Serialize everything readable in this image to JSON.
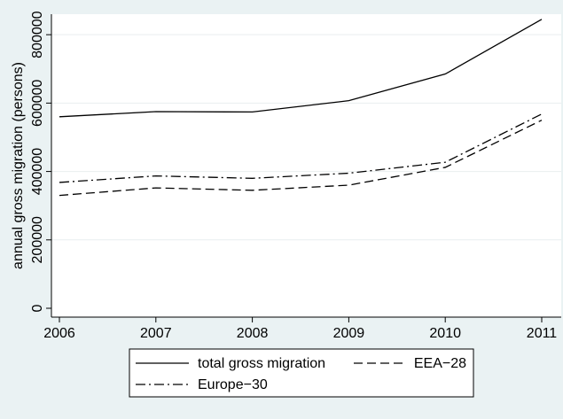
{
  "chart_data": {
    "type": "line",
    "title": "",
    "xlabel": "",
    "ylabel": "annual gross migration (persons)",
    "x": [
      2006,
      2007,
      2008,
      2009,
      2010,
      2011
    ],
    "xticks": [
      "2006",
      "2007",
      "2008",
      "2009",
      "2010",
      "2011"
    ],
    "yticks": [
      "0",
      "200000",
      "400000",
      "600000",
      "800000"
    ],
    "ylim": [
      0,
      860000
    ],
    "grid": "horizontal",
    "legend_position": "bottom",
    "series": [
      {
        "name": "total gross migration",
        "style": "solid",
        "color": "#000000",
        "values": [
          560000,
          575000,
          574000,
          607000,
          685000,
          845000
        ]
      },
      {
        "name": "EEA−28",
        "style": "dashed",
        "color": "#000000",
        "values": [
          330000,
          352000,
          345000,
          360000,
          412000,
          550000
        ]
      },
      {
        "name": "Europe−30",
        "style": "dashdot",
        "color": "#000000",
        "values": [
          368000,
          387000,
          380000,
          395000,
          427000,
          568000
        ]
      }
    ]
  }
}
